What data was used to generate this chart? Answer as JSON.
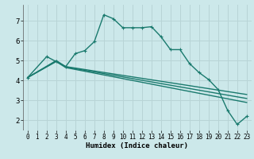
{
  "title": "",
  "xlabel": "Humidex (Indice chaleur)",
  "ylabel": "",
  "background_color": "#cce8ea",
  "grid_color": "#b8d4d6",
  "line_color": "#1a7a6e",
  "xlim": [
    -0.5,
    23.5
  ],
  "ylim": [
    1.5,
    7.8
  ],
  "xticks": [
    0,
    1,
    2,
    3,
    4,
    5,
    6,
    7,
    8,
    9,
    10,
    11,
    12,
    13,
    14,
    15,
    16,
    17,
    18,
    19,
    20,
    21,
    22,
    23
  ],
  "yticks": [
    2,
    3,
    4,
    5,
    6,
    7
  ],
  "series": [
    {
      "x": [
        0,
        2,
        3,
        4,
        5,
        6,
        7,
        8,
        9,
        10,
        11,
        12,
        13,
        14,
        15,
        16,
        17,
        18,
        19,
        20,
        21,
        22,
        23
      ],
      "y": [
        4.15,
        5.2,
        4.95,
        4.7,
        5.35,
        5.5,
        5.95,
        7.3,
        7.1,
        6.65,
        6.65,
        6.65,
        6.7,
        6.2,
        5.55,
        5.55,
        4.85,
        4.4,
        4.05,
        3.55,
        2.5,
        1.8,
        2.2
      ],
      "marker": "+"
    },
    {
      "x": [
        0,
        3,
        4,
        23
      ],
      "y": [
        4.15,
        5.0,
        4.7,
        3.3
      ],
      "marker": null
    },
    {
      "x": [
        0,
        3,
        4,
        23
      ],
      "y": [
        4.15,
        4.98,
        4.68,
        3.1
      ],
      "marker": null
    },
    {
      "x": [
        0,
        3,
        4,
        23
      ],
      "y": [
        4.15,
        4.95,
        4.65,
        2.9
      ],
      "marker": null
    }
  ]
}
